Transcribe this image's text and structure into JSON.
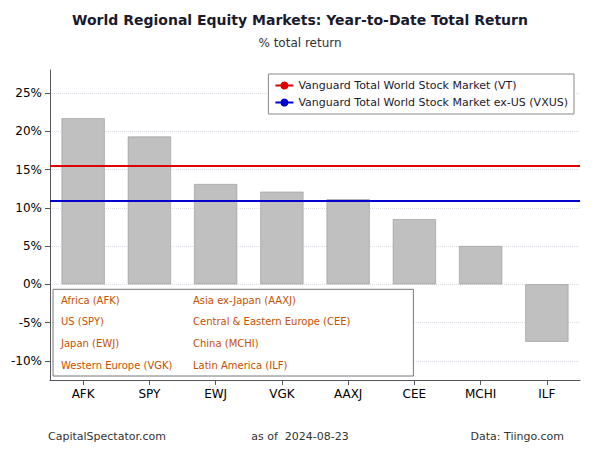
{
  "chart_data": {
    "type": "bar",
    "title": "World Regional Equity Markets: Year-to-Date Total Return",
    "subtitle": "% total return",
    "categories": [
      "AFK",
      "SPY",
      "EWJ",
      "VGK",
      "AAXJ",
      "CEE",
      "MCHI",
      "ILF"
    ],
    "values": [
      21.7,
      19.3,
      13.1,
      12.1,
      11.1,
      8.5,
      5.0,
      -7.5
    ],
    "color": "#c0c0c0",
    "reference_lines": [
      {
        "name": "Vanguard Total World Stock Market (VT)",
        "color": "#dd0000",
        "value": 15.5
      },
      {
        "name": "Vanguard Total World Stock Market ex-US (VXUS)",
        "color": "#0000cc",
        "value": 10.9
      }
    ],
    "ylim": [
      -12.5,
      28
    ],
    "yticks": [
      {
        "value": -10,
        "label": "-10%"
      },
      {
        "value": -5,
        "label": "-5%"
      },
      {
        "value": 0,
        "label": "0%"
      },
      {
        "value": 5,
        "label": "5%"
      },
      {
        "value": 10,
        "label": "10%"
      },
      {
        "value": 15,
        "label": "15%"
      },
      {
        "value": 20,
        "label": "20%"
      },
      {
        "value": 25,
        "label": "25%"
      }
    ],
    "grid": true,
    "legend": "upper right",
    "annotations": [
      [
        "Africa (AFK)",
        "Asia ex-Japan (AAXJ)"
      ],
      [
        "US (SPY)",
        "Central & Eastern Europe (CEE)"
      ],
      [
        "Japan (EWJ)",
        "China (MCHI)"
      ],
      [
        "Western Europe (VGK)",
        "Latin America (ILF)"
      ]
    ],
    "annotation_color": "#c85000",
    "footer": [
      "CapitalSpectator.com",
      "as of  2024-08-23",
      "Data: Tiingo.com"
    ]
  }
}
